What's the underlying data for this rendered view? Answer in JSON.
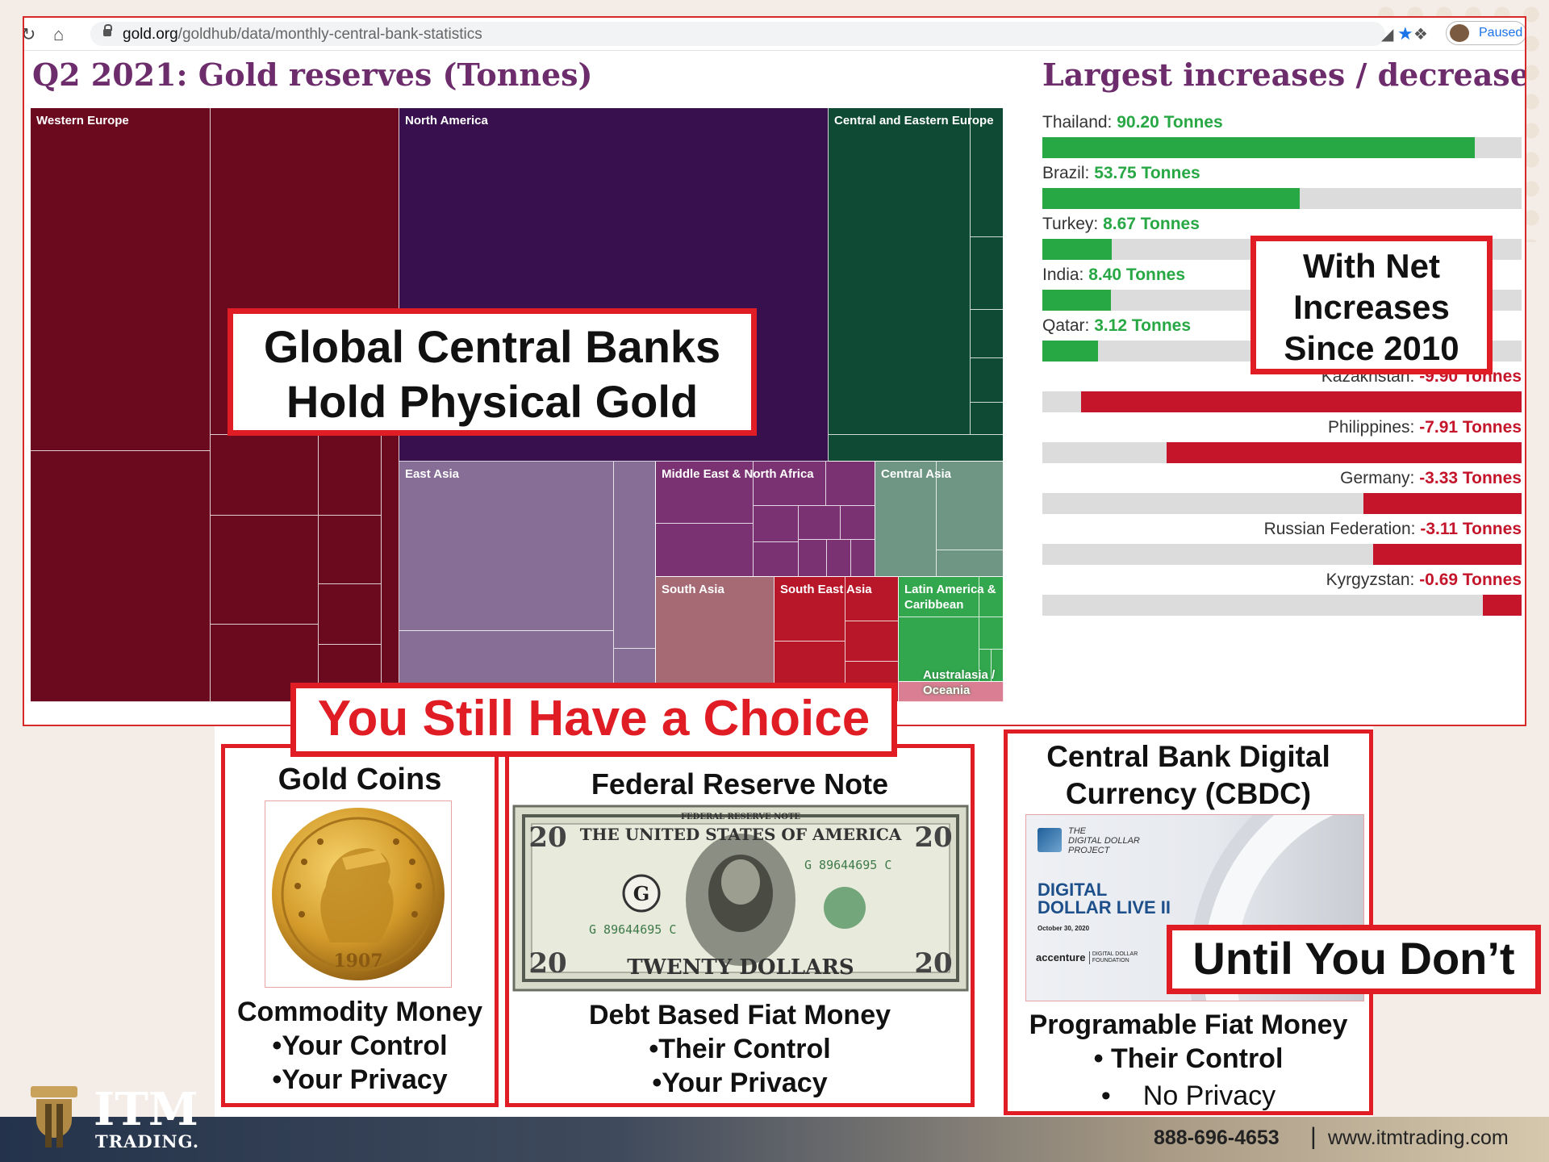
{
  "browser": {
    "url_domain": "gold.org",
    "url_path": "/goldhub/data/monthly-central-bank-statistics",
    "profile_status": "Paused",
    "icons": [
      "reload-icon",
      "home-icon",
      "lock-icon",
      "bookmark-star-icon",
      "chart-extension-icon",
      "puzzle-extension-icon",
      "profile-avatar"
    ]
  },
  "treemap": {
    "title": "Q2 2021: Gold reserves (Tonnes)",
    "regions": {
      "western_europe": "Western Europe",
      "north_america": "North America",
      "central_eastern_europe": "Central and Eastern Europe",
      "east_asia": "East Asia",
      "mena": "Middle East & North Africa",
      "central_asia": "Central Asia",
      "south_asia": "South Asia",
      "south_east_asia": "South East Asia",
      "latin_america_1": "Latin America &",
      "latin_america_2": "Caribbean",
      "australasia_1": "Australasia /",
      "australasia_2": "Oceania"
    },
    "colors": {
      "western_europe": "#6b0a1f",
      "north_america": "#38104e",
      "central_eastern_europe": "#0f4a34",
      "east_asia": "#866e96",
      "mena": "#7a3272",
      "central_asia": "#6f9685",
      "south_asia": "#a56a74",
      "south_east_asia": "#b71729",
      "latin_america": "#32a74d",
      "australasia": "#d97e93"
    }
  },
  "changes": {
    "title": "Largest increases / decreases",
    "unit": "Tonnes",
    "max_abs": 100,
    "colors": {
      "increase": "#27a844",
      "decrease": "#c4152b",
      "track": "#dcdcdc"
    },
    "increases": [
      {
        "country": "Thailand:",
        "value": "90.20 Tonnes",
        "amount": 90.2
      },
      {
        "country": "Brazil:",
        "value": "53.75 Tonnes",
        "amount": 53.75
      },
      {
        "country": "Turkey:",
        "value": "8.67 Tonnes",
        "amount": 8.67
      },
      {
        "country": "India:",
        "value": "8.40 Tonnes",
        "amount": 8.4
      },
      {
        "country": "Qatar:",
        "value": "3.12 Tonnes",
        "amount": 3.12
      }
    ],
    "decreases": [
      {
        "country": "Kazakhstan:",
        "value": "-9.90 Tonnes",
        "amount": -9.9
      },
      {
        "country": "Philippines:",
        "value": "-7.91 Tonnes",
        "amount": -7.91
      },
      {
        "country": "Germany:",
        "value": "-3.33 Tonnes",
        "amount": -3.33
      },
      {
        "country": "Russian Federation:",
        "value": "-3.11 Tonnes",
        "amount": -3.11
      },
      {
        "country": "Kyrgyzstan:",
        "value": "-0.69 Tonnes",
        "amount": -0.69
      }
    ]
  },
  "overlays": {
    "banks_line1": "Global Central Banks",
    "banks_line2": "Hold Physical Gold",
    "net_line1": "With Net",
    "net_line2": "Increases",
    "net_line3": "Since 2010",
    "choice": "You Still Have a Choice",
    "until": "Until You Don’t"
  },
  "panels": {
    "gold": {
      "title": "Gold Coins",
      "coin_year": "1907",
      "line1": "Commodity Money",
      "line2": "•Your Control",
      "line3": "•Your Privacy"
    },
    "fed": {
      "title": "Federal Reserve Note",
      "note_top": "FEDERAL RESERVE NOTE",
      "note_usa": "THE UNITED STATES OF AMERICA",
      "note_bottom": "TWENTY DOLLARS",
      "denomination": "20",
      "serial": "G 89644695 C",
      "line1": "Debt Based Fiat Money",
      "line2": "•Their Control",
      "line3": "•Your Privacy"
    },
    "cbdc": {
      "title1": "Central Bank Digital",
      "title2": "Currency (CBDC)",
      "project1": "THE",
      "project2": "DIGITAL DOLLAR",
      "project3": "PROJECT",
      "live1": "DIGITAL",
      "live2": "DOLLAR LIVE II",
      "date": "October 30, 2020",
      "brand1": "accenture",
      "brand2": "DIGITAL DOLLAR",
      "brand3": "FOUNDATION",
      "line1": "Programable Fiat Money",
      "line2": "• Their Control",
      "line3_bullet": "•",
      "line3": "No Privacy"
    }
  },
  "footer": {
    "logo1": "ITM",
    "logo2": "TRADING.",
    "phone": "888-696-4653",
    "separator": "|",
    "website": "www.itmtrading.com"
  }
}
